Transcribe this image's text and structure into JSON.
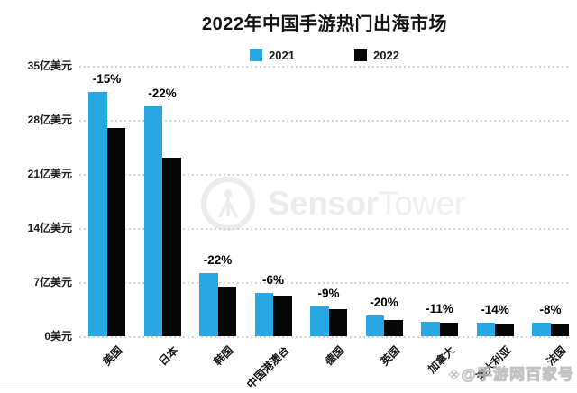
{
  "title": "2022年中国手游热门出海市场",
  "legend": [
    {
      "label": "2021",
      "color": "#29A7E3"
    },
    {
      "label": "2022",
      "color": "#070707"
    }
  ],
  "y_axis": {
    "ticks": [
      "35亿美元",
      "28亿美元",
      "21亿美元",
      "14亿美元",
      "7亿美元",
      "0美元"
    ]
  },
  "watermarks": {
    "sensor_tower": {
      "bold": "Sensor",
      "light": "Tower"
    },
    "baijiahao_icon": "❖",
    "baijiahao_text": "@手游网百家号"
  },
  "chart_data": {
    "type": "bar",
    "title": "2022年中国手游热门出海市场",
    "categories": [
      "美国",
      "日本",
      "韩国",
      "中国港澳台",
      "德国",
      "英国",
      "加拿大",
      "澳大利亚",
      "法国"
    ],
    "series": [
      {
        "name": "2021",
        "color": "#29A7E3",
        "values": [
          31.6,
          29.7,
          8.2,
          5.6,
          3.9,
          2.65,
          1.9,
          1.8,
          1.7
        ]
      },
      {
        "name": "2022",
        "color": "#070707",
        "values": [
          27.0,
          23.1,
          6.4,
          5.25,
          3.55,
          2.1,
          1.7,
          1.55,
          1.55
        ]
      }
    ],
    "annotations": [
      "-15%",
      "-22%",
      "-22%",
      "-6%",
      "-9%",
      "-20%",
      "-11%",
      "-14%",
      "-8%"
    ],
    "unit": "亿美元",
    "ylim": [
      0,
      35
    ],
    "ytick_step": 7,
    "grid": "dotted-horizontal",
    "legend_position": "top-center",
    "xlabel_rotation_deg": -45
  }
}
